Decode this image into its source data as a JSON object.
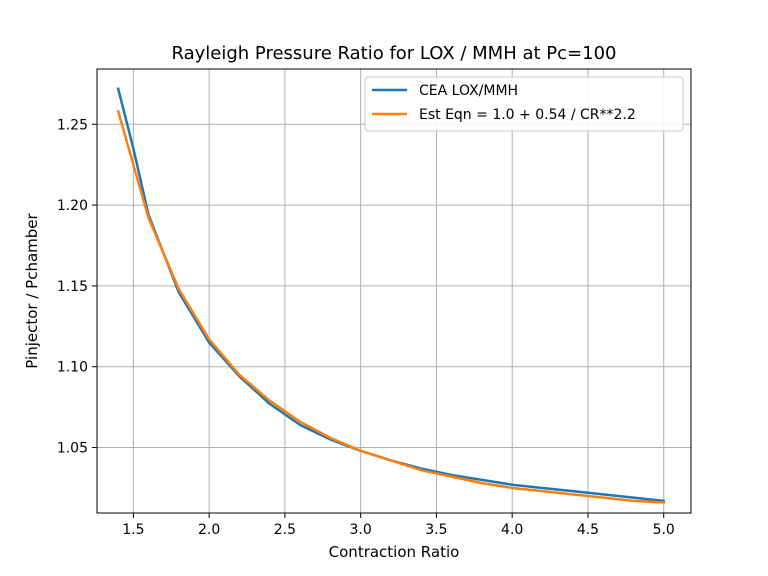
{
  "chart_data": {
    "type": "line",
    "title": "Rayleigh Pressure Ratio for LOX / MMH at Pc=100",
    "xlabel": "Contraction Ratio",
    "ylabel": "Pinjector / Pchamber",
    "xlim": [
      1.26,
      5.18
    ],
    "ylim": [
      1.0095,
      1.2842
    ],
    "xticks": [
      1.5,
      2.0,
      2.5,
      3.0,
      3.5,
      4.0,
      4.5,
      5.0
    ],
    "xtick_labels": [
      "1.5",
      "2.0",
      "2.5",
      "3.0",
      "3.5",
      "4.0",
      "4.5",
      "5.0"
    ],
    "yticks": [
      1.05,
      1.1,
      1.15,
      1.2,
      1.25
    ],
    "ytick_labels": [
      "1.05",
      "1.10",
      "1.15",
      "1.20",
      "1.25"
    ],
    "grid": true,
    "legend_position": "top-right",
    "series": [
      {
        "name": "CEA LOX/MMH",
        "color": "#1f77b4",
        "x": [
          1.4,
          1.5,
          1.6,
          1.8,
          2.0,
          2.2,
          2.4,
          2.6,
          2.8,
          3.0,
          3.2,
          3.4,
          3.6,
          3.8,
          4.0,
          4.2,
          4.4,
          4.6,
          4.8,
          5.0
        ],
        "y": [
          1.272,
          1.235,
          1.194,
          1.146,
          1.115,
          1.094,
          1.077,
          1.064,
          1.055,
          1.048,
          1.042,
          1.037,
          1.033,
          1.03,
          1.027,
          1.025,
          1.023,
          1.021,
          1.019,
          1.017
        ]
      },
      {
        "name": "Est Eqn = 1.0 + 0.54 / CR**2.2",
        "color": "#ff7f0e",
        "x": [
          1.4,
          1.6,
          1.8,
          2.0,
          2.2,
          2.4,
          2.6,
          2.8,
          3.0,
          3.2,
          3.4,
          3.6,
          3.8,
          4.0,
          4.2,
          4.4,
          4.6,
          4.8,
          5.0
        ],
        "y": [
          1.258,
          1.192,
          1.148,
          1.117,
          1.095,
          1.079,
          1.066,
          1.056,
          1.048,
          1.042,
          1.036,
          1.032,
          1.028,
          1.025,
          1.023,
          1.021,
          1.019,
          1.017,
          1.016
        ]
      }
    ]
  }
}
